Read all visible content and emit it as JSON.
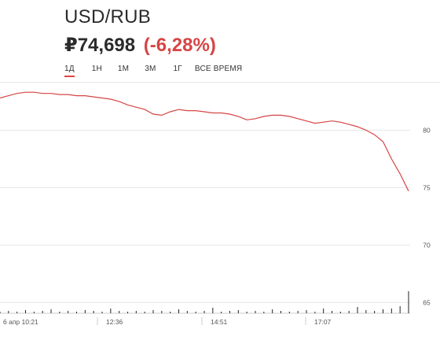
{
  "header": {
    "pair": "USD/RUB",
    "price": "₽74,698",
    "change": "(-6,28%)"
  },
  "tabs": [
    {
      "label": "1Д",
      "active": true
    },
    {
      "label": "1Н",
      "active": false
    },
    {
      "label": "1М",
      "active": false
    },
    {
      "label": "3М",
      "active": false
    },
    {
      "label": "1Г",
      "active": false
    },
    {
      "label": "ВСЕ ВРЕМЯ",
      "active": false
    }
  ],
  "colors": {
    "line": "#d64545",
    "change": "#d64545",
    "volume": "#222222",
    "grid": "#e6e6e6"
  },
  "chart_data": {
    "type": "line",
    "x_tick_labels": [
      "6 апр 10:21",
      "12:36",
      "14:51",
      "17:07"
    ],
    "y_tick_labels": [
      "80",
      "75",
      "70",
      "65"
    ],
    "ylim": [
      64,
      84
    ],
    "grid": true,
    "series": [
      {
        "values": [
          82.8,
          83.0,
          83.2,
          83.3,
          83.3,
          83.2,
          83.2,
          83.1,
          83.1,
          83.0,
          83.0,
          82.9,
          82.8,
          82.7,
          82.5,
          82.2,
          82.0,
          81.8,
          81.4,
          81.3,
          81.6,
          81.8,
          81.7,
          81.7,
          81.6,
          81.5,
          81.5,
          81.4,
          81.2,
          80.9,
          81.0,
          81.2,
          81.3,
          81.3,
          81.2,
          81.0,
          80.8,
          80.6,
          80.7,
          80.8,
          80.7,
          80.5,
          80.3,
          80.0,
          79.6,
          79.0,
          77.5,
          76.2,
          74.7
        ],
        "volumes": [
          2,
          3,
          2,
          4,
          2,
          3,
          5,
          2,
          3,
          2,
          4,
          3,
          2,
          6,
          3,
          2,
          3,
          2,
          4,
          3,
          2,
          5,
          3,
          2,
          3,
          7,
          2,
          3,
          4,
          2,
          3,
          2,
          5,
          3,
          2,
          3,
          4,
          2,
          6,
          3,
          2,
          3,
          8,
          4,
          3,
          5,
          6,
          9,
          28
        ]
      }
    ]
  }
}
